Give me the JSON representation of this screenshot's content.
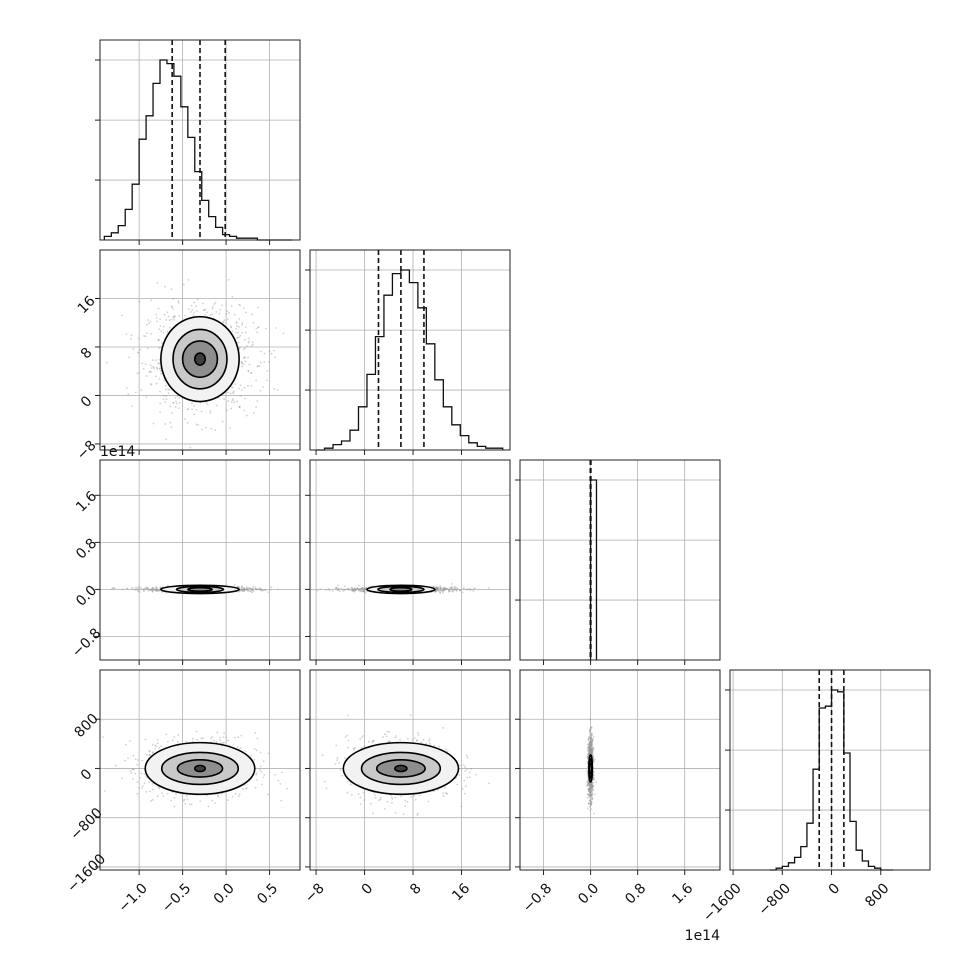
{
  "chart_data": {
    "type": "corner",
    "n_params": 4,
    "colors": {
      "line": "#000000",
      "points": "#9a9a9a",
      "grid": "#b0b0b0"
    },
    "params": [
      {
        "index": 0,
        "range": [
          -1.45,
          0.85
        ],
        "ticks": [
          -1.0,
          -0.5,
          0.0,
          0.5
        ],
        "tick_labels": [
          "−1.0",
          "−0.5",
          "0.0",
          "0.5"
        ],
        "offset_label": "",
        "mean": -0.3,
        "sd": 0.3
      },
      {
        "index": 1,
        "range": [
          -9,
          24
        ],
        "ticks": [
          -8,
          0,
          8,
          16
        ],
        "tick_labels": [
          "−8",
          "0",
          "8",
          "16"
        ],
        "offset_label": "",
        "mean": 6,
        "sd": 4
      },
      {
        "index": 2,
        "range": [
          -1.2,
          2.2
        ],
        "ticks": [
          -0.8,
          0.0,
          0.8,
          1.6
        ],
        "tick_labels": [
          "−0.8",
          "0.0",
          "0.8",
          "1.6"
        ],
        "offset_label": "1e14",
        "mean": 0.0,
        "sd": 0.02
      },
      {
        "index": 3,
        "range": [
          -1650,
          1600
        ],
        "ticks": [
          -1600,
          -800,
          0,
          800
        ],
        "tick_labels": [
          "−1600",
          "−800",
          "0",
          "800"
        ],
        "offset_label": "",
        "mean": 0,
        "sd": 220
      }
    ],
    "histograms": [
      {
        "param": 0,
        "bins": [
          -1.4,
          -1.32,
          -1.24,
          -1.16,
          -1.08,
          -1.0,
          -0.92,
          -0.84,
          -0.76,
          -0.68,
          -0.6,
          -0.52,
          -0.44,
          -0.36,
          -0.28,
          -0.2,
          -0.12,
          -0.04,
          0.04,
          0.12,
          0.2,
          0.28,
          0.36,
          0.44,
          0.52,
          0.6,
          0.68,
          0.76
        ],
        "counts": [
          2,
          4,
          8,
          17,
          31,
          56,
          69,
          87,
          100,
          98,
          91,
          74,
          57,
          38,
          22,
          13,
          7,
          3,
          2,
          1,
          1,
          1,
          0,
          0,
          0,
          0,
          0
        ],
        "counts_note": "",
        "quantiles": [
          -0.62,
          -0.3,
          -0.01
        ]
      },
      {
        "param": 1,
        "bins": [
          -8.0,
          -6.6,
          -5.2,
          -3.8,
          -2.4,
          -1.0,
          0.4,
          1.8,
          3.2,
          4.6,
          6.0,
          7.4,
          8.8,
          10.2,
          11.6,
          13.0,
          14.4,
          15.8,
          17.2,
          18.6,
          20.0,
          21.4,
          22.8
        ],
        "counts": [
          0,
          1,
          3,
          5,
          11,
          24,
          42,
          63,
          86,
          98,
          100,
          93,
          79,
          59,
          39,
          24,
          14,
          8,
          4,
          2,
          1,
          1
        ],
        "quantiles": [
          2.3,
          6.0,
          9.8
        ]
      },
      {
        "param": 2,
        "bins": [
          -0.02,
          0.0,
          0.1
        ],
        "counts": [
          0,
          100
        ],
        "quantiles": [
          -0.005,
          0.0,
          0.005
        ]
      },
      {
        "param": 3,
        "bins": [
          -1000,
          -900,
          -800,
          -700,
          -600,
          -500,
          -400,
          -300,
          -200,
          -100,
          0,
          100,
          200,
          300,
          400,
          500,
          600,
          700,
          800,
          900,
          1000
        ],
        "counts": [
          0,
          1,
          2,
          4,
          7,
          13,
          26,
          56,
          90,
          91,
          100,
          99,
          65,
          27,
          11,
          5,
          2,
          1,
          0,
          0
        ],
        "quantiles": [
          -200,
          0,
          200
        ]
      }
    ],
    "pairs": [
      {
        "x": 0,
        "y": 1,
        "center": [
          -0.3,
          6.0
        ],
        "contour_radii": [
          [
            0.06,
            1.0
          ],
          [
            0.2,
            3.0
          ],
          [
            0.31,
            4.9
          ],
          [
            0.45,
            7.0
          ]
        ]
      },
      {
        "x": 0,
        "y": 2,
        "center": [
          -0.3,
          0.0
        ],
        "contour_radii": [
          [
            0.14,
            0.03
          ],
          [
            0.27,
            0.05
          ],
          [
            0.45,
            0.07
          ]
        ]
      },
      {
        "x": 1,
        "y": 2,
        "center": [
          6.0,
          0.0
        ],
        "contour_radii": [
          [
            1.8,
            0.03
          ],
          [
            3.8,
            0.05
          ],
          [
            5.6,
            0.07
          ]
        ]
      },
      {
        "x": 0,
        "y": 3,
        "center": [
          -0.3,
          0.0
        ],
        "contour_radii": [
          [
            0.06,
            50
          ],
          [
            0.26,
            140
          ],
          [
            0.44,
            260
          ],
          [
            0.63,
            420
          ]
        ]
      },
      {
        "x": 1,
        "y": 3,
        "center": [
          6.0,
          0.0
        ],
        "contour_radii": [
          [
            1.0,
            50
          ],
          [
            4.0,
            140
          ],
          [
            6.5,
            260
          ],
          [
            9.5,
            420
          ]
        ]
      },
      {
        "x": 2,
        "y": 3,
        "center": [
          0.0,
          0.0
        ],
        "contour_radii": [
          [
            0.01,
            80
          ],
          [
            0.02,
            160
          ],
          [
            0.03,
            220
          ]
        ]
      }
    ],
    "grid": true,
    "legend": "none"
  }
}
